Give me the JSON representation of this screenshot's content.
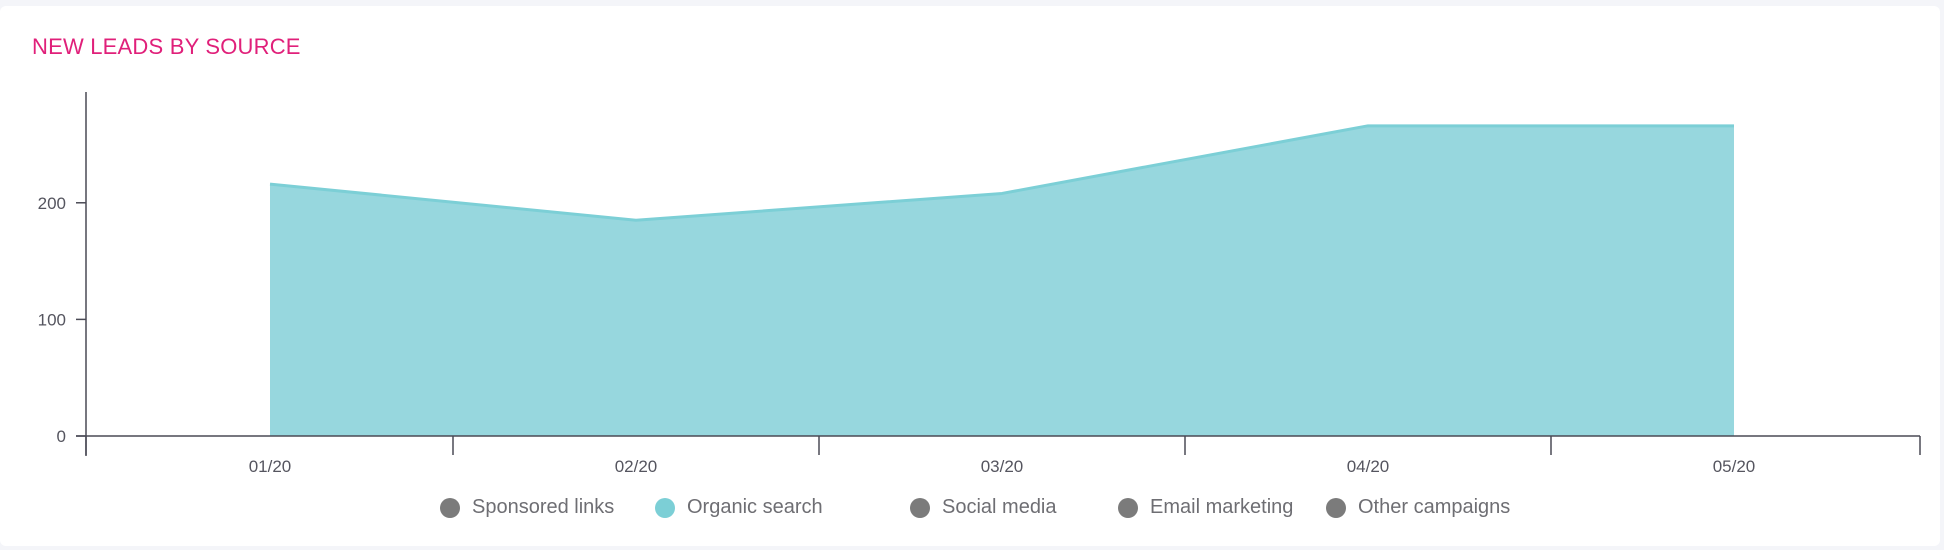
{
  "card": {
    "title": "NEW LEADS BY SOURCE"
  },
  "chart_data": {
    "type": "area",
    "categories": [
      "01/20",
      "02/20",
      "03/20",
      "04/20",
      "05/20"
    ],
    "series": [
      {
        "name": "Organic search",
        "values": [
          216,
          185,
          208,
          266,
          266
        ],
        "color": "#97d7de",
        "stroke": "#7ccfd6"
      }
    ],
    "yticks": [
      0,
      100,
      200
    ],
    "ylim": [
      0,
      295
    ],
    "grid": false,
    "legend_position": "bottom",
    "legend": [
      {
        "label": "Sponsored links",
        "color": "#7b7b7b"
      },
      {
        "label": "Organic search",
        "color": "#7ccfd6"
      },
      {
        "label": "Social media",
        "color": "#7b7b7b"
      },
      {
        "label": "Email marketing",
        "color": "#7b7b7b"
      },
      {
        "label": "Other campaigns",
        "color": "#7b7b7b"
      }
    ]
  }
}
